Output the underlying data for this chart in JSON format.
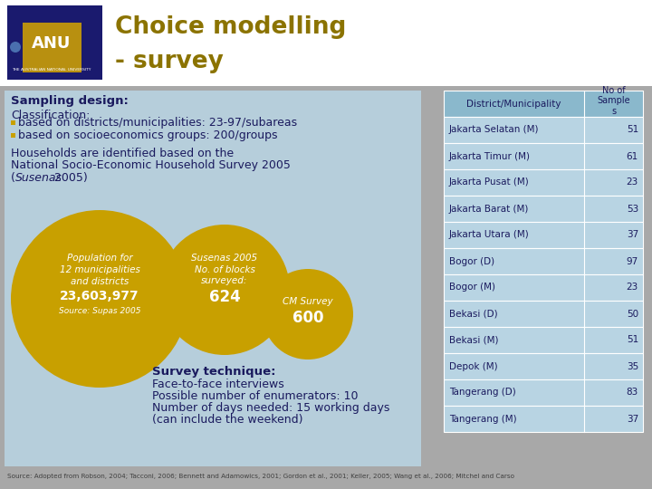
{
  "title_line1": "Choice modelling",
  "title_line2": "- survey",
  "title_color": "#8B7300",
  "bg_color": "#FFFFFF",
  "left_panel_bg": "#B8D4E3",
  "header_text": "Sampling design:",
  "bullet_color": "#C8A000",
  "table_header": [
    "District/Municipality",
    "No of\nSample\ns"
  ],
  "table_data": [
    [
      "Jakarta Selatan (M)",
      "51"
    ],
    [
      "Jakarta Timur (M)",
      "61"
    ],
    [
      "Jakarta Pusat (M)",
      "23"
    ],
    [
      "Jakarta Barat (M)",
      "53"
    ],
    [
      "Jakarta Utara (M)",
      "37"
    ],
    [
      "Bogor (D)",
      "97"
    ],
    [
      "Bogor (M)",
      "23"
    ],
    [
      "Bekasi (D)",
      "50"
    ],
    [
      "Bekasi (M)",
      "51"
    ],
    [
      "Depok (M)",
      "35"
    ],
    [
      "Tangerang (D)",
      "83"
    ],
    [
      "Tangerang (M)",
      "37"
    ]
  ],
  "table_header_bg": "#8AB8CC",
  "table_row_bg": "#B8D4E3",
  "circle_color": "#C8A000",
  "survey_technique_title": "Survey technique:",
  "survey_technique_lines": [
    "Face-to-face interviews",
    "Possible number of enumerators: 10",
    "Number of days needed: 15 working days",
    "(can include the weekend)"
  ],
  "footer": "Source: Adopted from Robson, 2004; Tacconi, 2006; Bennett and Adamowics, 2001; Gordon et al., 2001; Keller, 2005; Wang et al., 2006; Mitchel and Carso",
  "text_color": "#1A1A5E",
  "dark_navy": "#1A1A6E"
}
